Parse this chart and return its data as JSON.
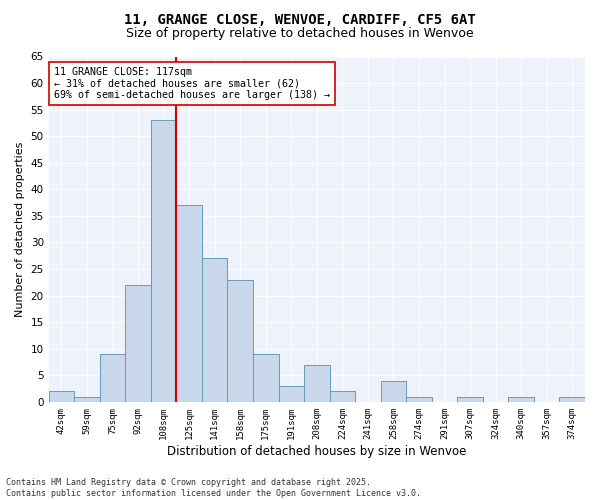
{
  "title1": "11, GRANGE CLOSE, WENVOE, CARDIFF, CF5 6AT",
  "title2": "Size of property relative to detached houses in Wenvoe",
  "xlabel": "Distribution of detached houses by size in Wenvoe",
  "ylabel": "Number of detached properties",
  "categories": [
    "42sqm",
    "59sqm",
    "75sqm",
    "92sqm",
    "108sqm",
    "125sqm",
    "141sqm",
    "158sqm",
    "175sqm",
    "191sqm",
    "208sqm",
    "224sqm",
    "241sqm",
    "258sqm",
    "274sqm",
    "291sqm",
    "307sqm",
    "324sqm",
    "340sqm",
    "357sqm",
    "374sqm"
  ],
  "values": [
    2,
    1,
    9,
    22,
    53,
    37,
    27,
    23,
    9,
    3,
    7,
    2,
    0,
    4,
    1,
    0,
    1,
    0,
    1,
    0,
    1
  ],
  "bar_color": "#c8d8ea",
  "bar_edge_color": "#6699bb",
  "vline_color": "#cc0000",
  "annotation_text": "11 GRANGE CLOSE: 117sqm\n← 31% of detached houses are smaller (62)\n69% of semi-detached houses are larger (138) →",
  "annotation_box_color": "#ffffff",
  "annotation_box_edge": "#cc0000",
  "ylim": [
    0,
    65
  ],
  "yticks": [
    0,
    5,
    10,
    15,
    20,
    25,
    30,
    35,
    40,
    45,
    50,
    55,
    60,
    65
  ],
  "bg_color": "#eef2fa",
  "grid_color": "#ffffff",
  "footer": "Contains HM Land Registry data © Crown copyright and database right 2025.\nContains public sector information licensed under the Open Government Licence v3.0.",
  "title_fontsize": 10,
  "subtitle_fontsize": 9,
  "annot_fontsize": 7.2
}
